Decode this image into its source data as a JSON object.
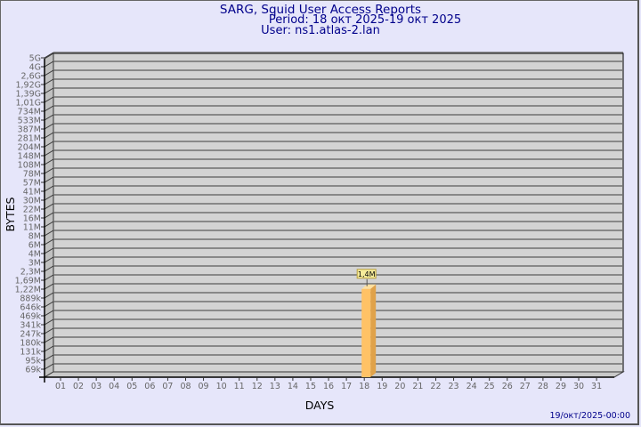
{
  "header": {
    "title": "SARG, Squid User Access Reports",
    "period": "Period: 18 окт 2025-19 окт 2025",
    "user": "User: ns1.atlas-2.lan"
  },
  "footer": {
    "timestamp": "19/окт/2025-00:00"
  },
  "colors": {
    "background": "#e6e6fa",
    "plot": "#d3d3d3",
    "bar": "#ffc266",
    "bar_side": "#e0a24a",
    "title": "#00008b"
  },
  "chart_data": {
    "type": "bar",
    "xlabel": "DAYS",
    "ylabel": "BYTES",
    "y_scale": "log",
    "grid": true,
    "yticks": [
      "5G",
      "4G",
      "2,6G",
      "1,92G",
      "1,39G",
      "1,01G",
      "734M",
      "533M",
      "387M",
      "281M",
      "204M",
      "148M",
      "108M",
      "78M",
      "57M",
      "41M",
      "30M",
      "22M",
      "16M",
      "11M",
      "8M",
      "6M",
      "4M",
      "3M",
      "2,3M",
      "1,69M",
      "1,22M",
      "889k",
      "646k",
      "469k",
      "341k",
      "247k",
      "180k",
      "131k",
      "95k",
      "69k"
    ],
    "categories": [
      "01",
      "02",
      "03",
      "04",
      "05",
      "06",
      "07",
      "08",
      "09",
      "10",
      "11",
      "12",
      "13",
      "14",
      "15",
      "16",
      "17",
      "18",
      "19",
      "20",
      "21",
      "22",
      "23",
      "24",
      "25",
      "26",
      "27",
      "28",
      "29",
      "30",
      "31"
    ],
    "bars": [
      {
        "category": "18",
        "value": 1400000,
        "label": "1,4M"
      }
    ]
  }
}
